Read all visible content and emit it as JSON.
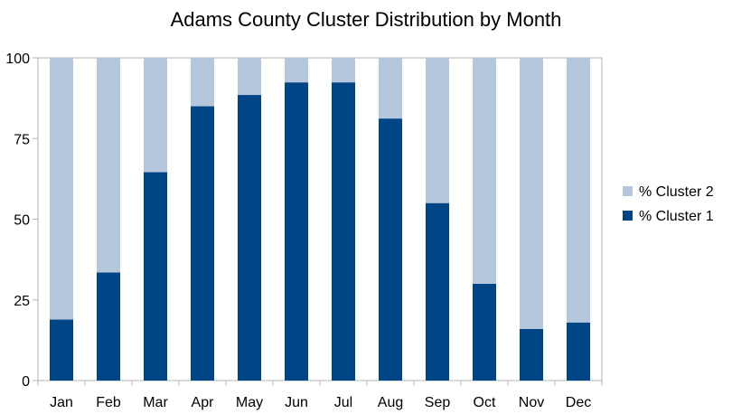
{
  "chart_data": {
    "type": "bar",
    "stacked": true,
    "title": "Adams County Cluster Distribution by Month",
    "xlabel": "",
    "ylabel": "",
    "categories": [
      "Jan",
      "Feb",
      "Mar",
      "Apr",
      "May",
      "Jun",
      "Jul",
      "Aug",
      "Sep",
      "Oct",
      "Nov",
      "Dec"
    ],
    "series": [
      {
        "name": "% Cluster 1",
        "color": "#004586",
        "values": [
          18.9,
          33.5,
          64.6,
          85.0,
          88.5,
          92.4,
          92.4,
          81.2,
          55.0,
          30.0,
          16.0,
          18.0
        ]
      },
      {
        "name": "% Cluster 2",
        "color": "#b4c7dc",
        "values": [
          81.1,
          66.5,
          35.4,
          15.0,
          11.5,
          7.6,
          7.6,
          18.8,
          45.0,
          70.0,
          84.0,
          82.0
        ]
      }
    ],
    "yticks": [
      "0",
      "25",
      "50",
      "75",
      "100"
    ],
    "ylim": [
      0,
      100
    ],
    "grid": false,
    "legend_position": "right",
    "legend_order": [
      "% Cluster 2",
      "% Cluster 1"
    ]
  }
}
